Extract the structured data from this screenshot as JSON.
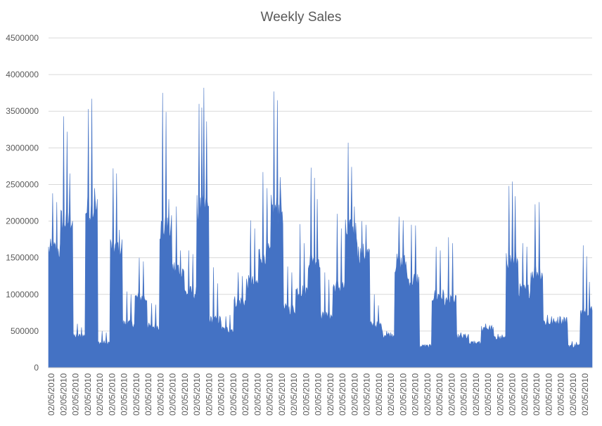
{
  "chart_data": {
    "type": "area",
    "title": "Weekly Sales",
    "xlabel": "",
    "ylabel": "",
    "ylim": [
      0,
      4500000
    ],
    "y_ticks": [
      0,
      500000,
      1000000,
      1500000,
      2000000,
      2500000,
      3000000,
      3500000,
      4000000,
      4500000
    ],
    "y_tick_labels": [
      "0",
      "500000",
      "1000000",
      "1500000",
      "2000000",
      "2500000",
      "3000000",
      "3500000",
      "4000000",
      "4500000"
    ],
    "x_tick_labels": [
      "02/05/2010",
      "02/05/2010",
      "02/05/2010",
      "02/05/2010",
      "02/05/2010",
      "02/05/2010",
      "02/05/2010",
      "02/05/2010",
      "02/05/2010",
      "02/05/2010",
      "02/05/2010",
      "02/05/2010",
      "02/05/2010",
      "02/05/2010",
      "02/05/2010",
      "02/05/2010",
      "02/05/2010",
      "02/05/2010",
      "02/05/2010",
      "02/05/2010",
      "02/05/2010",
      "02/05/2010",
      "02/05/2010",
      "02/05/2010",
      "02/05/2010",
      "02/05/2010",
      "02/05/2010",
      "02/05/2010",
      "02/05/2010",
      "02/05/2010",
      "02/05/2010",
      "02/05/2010",
      "02/05/2010",
      "02/05/2010",
      "02/05/2010",
      "02/05/2010",
      "02/05/2010",
      "02/05/2010",
      "02/05/2010",
      "02/05/2010",
      "02/05/2010",
      "02/05/2010",
      "02/05/2010",
      "02/05/2010",
      "02/05/2010"
    ],
    "grid": true,
    "legend": "none",
    "color": "#4472c4",
    "series": [
      {
        "segments": [
          {
            "base": 1600000,
            "spikes": [
              2380000,
              2260000
            ]
          },
          {
            "base": 2000000,
            "spikes": [
              3430000,
              3220000,
              2650000
            ]
          },
          {
            "base": 430000,
            "spikes": [
              600000,
              550000
            ]
          },
          {
            "base": 2150000,
            "spikes": [
              3530000,
              3670000,
              2450000
            ]
          },
          {
            "base": 340000,
            "spikes": [
              500000,
              480000
            ]
          },
          {
            "base": 1650000,
            "spikes": [
              2720000,
              2650000,
              1880000
            ]
          },
          {
            "base": 600000,
            "spikes": [
              1040000,
              1000000
            ]
          },
          {
            "base": 950000,
            "spikes": [
              1500000,
              1450000
            ]
          },
          {
            "base": 560000,
            "spikes": [
              880000,
              860000
            ]
          },
          {
            "base": 1900000,
            "spikes": [
              3750000,
              3490000,
              2300000
            ]
          },
          {
            "base": 1350000,
            "spikes": [
              2200000,
              1600000
            ]
          },
          {
            "base": 1020000,
            "spikes": [
              1600000,
              1550000
            ]
          },
          {
            "base": 2150000,
            "spikes": [
              3600000,
              3550000,
              3820000,
              3360000
            ]
          },
          {
            "base": 650000,
            "spikes": [
              1370000,
              1150000
            ]
          },
          {
            "base": 520000,
            "spikes": [
              700000,
              720000
            ]
          },
          {
            "base": 900000,
            "spikes": [
              1300000,
              1250000
            ]
          },
          {
            "base": 1150000,
            "spikes": [
              2010000,
              1900000
            ]
          },
          {
            "base": 1550000,
            "spikes": [
              2670000,
              2450000
            ]
          },
          {
            "base": 2150000,
            "spikes": [
              3770000,
              3650000,
              2600000
            ]
          },
          {
            "base": 800000,
            "spikes": [
              1380000,
              1300000
            ]
          },
          {
            "base": 1050000,
            "spikes": [
              1960000,
              1700000
            ]
          },
          {
            "base": 1500000,
            "spikes": [
              2730000,
              2590000,
              2300000
            ]
          },
          {
            "base": 700000,
            "spikes": [
              1300000,
              1200000
            ]
          },
          {
            "base": 1100000,
            "spikes": [
              2100000,
              1900000
            ]
          },
          {
            "base": 1850000,
            "spikes": [
              3070000,
              2740000,
              2200000
            ]
          },
          {
            "base": 1550000,
            "spikes": [
              2000000,
              1950000
            ]
          },
          {
            "base": 580000,
            "spikes": [
              1000000,
              850000
            ]
          },
          {
            "base": 450000,
            "spikes": [
              500000,
              480000
            ]
          },
          {
            "base": 1420000,
            "spikes": [
              2060000,
              2010000
            ]
          },
          {
            "base": 1200000,
            "spikes": [
              1950000,
              1940000
            ]
          },
          {
            "base": 290000,
            "spikes": [
              310000,
              300000
            ]
          },
          {
            "base": 980000,
            "spikes": [
              1650000,
              1600000
            ]
          },
          {
            "base": 900000,
            "spikes": [
              1780000,
              1700000
            ]
          },
          {
            "base": 420000,
            "spikes": [
              480000,
              460000
            ]
          },
          {
            "base": 330000,
            "spikes": [
              360000,
              350000
            ]
          },
          {
            "base": 540000,
            "spikes": [
              600000,
              580000
            ]
          },
          {
            "base": 400000,
            "spikes": [
              460000,
              450000
            ]
          },
          {
            "base": 1450000,
            "spikes": [
              2480000,
              2540000,
              2340000
            ]
          },
          {
            "base": 1050000,
            "spikes": [
              1700000,
              1650000
            ]
          },
          {
            "base": 1300000,
            "spikes": [
              2230000,
              2260000
            ]
          },
          {
            "base": 620000,
            "spikes": [
              720000,
              700000
            ]
          },
          {
            "base": 640000,
            "spikes": [
              700000,
              690000
            ]
          },
          {
            "base": 300000,
            "spikes": [
              360000,
              350000
            ]
          },
          {
            "base": 780000,
            "spikes": [
              1670000,
              1520000,
              1170000
            ]
          }
        ]
      }
    ]
  }
}
